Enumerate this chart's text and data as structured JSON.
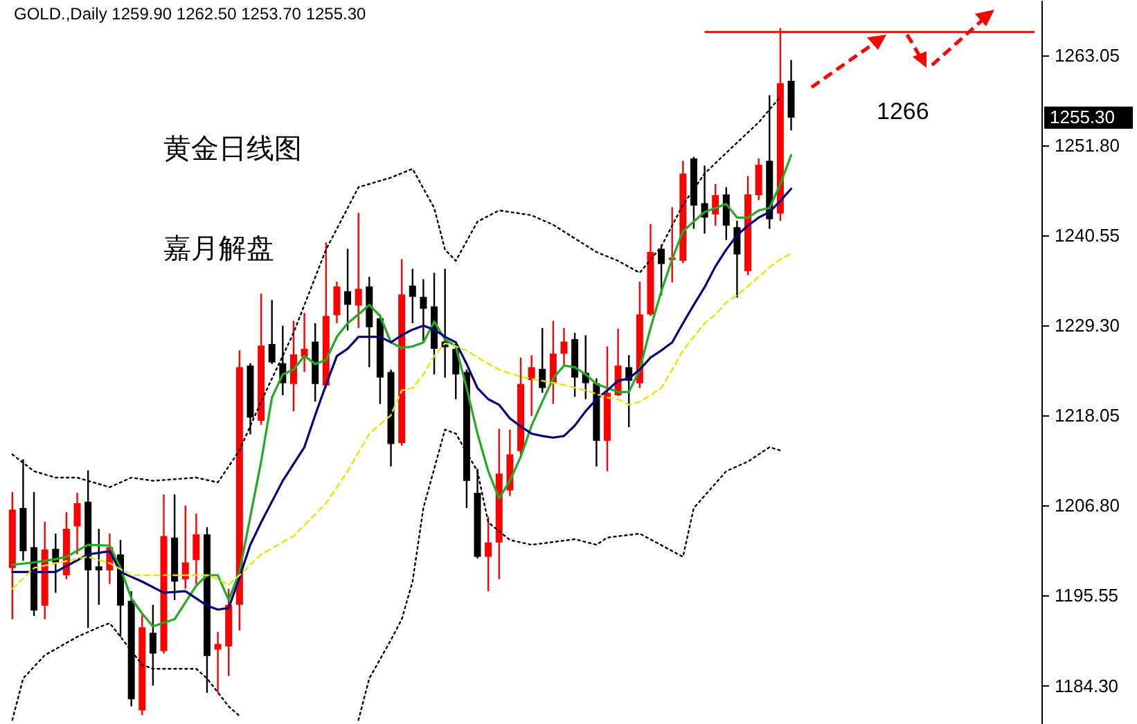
{
  "chart_data": {
    "type": "candlestick",
    "title": "GOLD.,Daily  1259.90 1262.50 1253.70 1255.30",
    "categories": [
      null,
      null,
      null,
      null,
      null,
      null,
      null,
      null,
      null,
      null,
      null,
      null,
      null,
      null,
      null,
      null,
      null,
      null,
      null,
      null,
      null,
      null,
      null,
      null,
      null,
      null,
      null,
      null,
      null,
      null,
      null,
      null,
      null,
      null,
      null,
      null,
      null,
      null,
      null,
      null,
      null,
      null,
      null,
      null,
      null,
      null,
      null,
      null,
      null,
      null,
      null,
      null,
      null,
      null,
      null,
      null,
      null,
      null,
      null,
      null,
      null,
      null,
      null,
      null,
      null,
      null,
      null,
      null,
      null,
      null,
      null,
      null,
      null,
      null,
      null,
      null,
      null,
      null,
      null,
      null,
      null,
      null,
      null,
      null,
      null,
      null,
      null,
      null,
      null,
      null,
      null,
      null,
      null,
      null,
      null
    ],
    "ohlc": [
      [
        1199.0,
        1208.5,
        1192.6,
        1206.3
      ],
      [
        1206.5,
        1212.6,
        1199.9,
        1201.1
      ],
      [
        1201.6,
        1208.5,
        1193.0,
        1193.7
      ],
      [
        1194.3,
        1204.8,
        1192.6,
        1201.3
      ],
      [
        1201.4,
        1203.3,
        1195.9,
        1199.7
      ],
      [
        1198.1,
        1206.0,
        1197.6,
        1203.9
      ],
      [
        1204.2,
        1208.4,
        1200.7,
        1207.1
      ],
      [
        1207.3,
        1211.2,
        1191.5,
        1198.7
      ],
      [
        1199.2,
        1203.9,
        1194.4,
        1198.7
      ],
      [
        1198.7,
        1203.3,
        1197.0,
        1201.6
      ],
      [
        1200.7,
        1202.5,
        1190.4,
        1194.3
      ],
      [
        1194.9,
        1196.1,
        1181.7,
        1182.6
      ],
      [
        1181.2,
        1193.1,
        1180.6,
        1191.6
      ],
      [
        1190.9,
        1194.4,
        1184.3,
        1188.3
      ],
      [
        1188.6,
        1208.2,
        1188.3,
        1203.0
      ],
      [
        1202.8,
        1208.2,
        1195.0,
        1197.3
      ],
      [
        1197.6,
        1206.8,
        1196.4,
        1199.7
      ],
      [
        1200.0,
        1205.8,
        1197.0,
        1203.2
      ],
      [
        1203.2,
        1204.1,
        1183.4,
        1188.0
      ],
      [
        1188.8,
        1191.0,
        1183.4,
        1189.5
      ],
      [
        1189.2,
        1196.4,
        1185.5,
        1194.4
      ],
      [
        1194.4,
        1226.2,
        1191.2,
        1224.1
      ],
      [
        1224.3,
        1224.6,
        1215.7,
        1217.8
      ],
      [
        1217.4,
        1233.3,
        1216.9,
        1226.8
      ],
      [
        1227.0,
        1232.5,
        1224.5,
        1224.7
      ],
      [
        1224.6,
        1229.3,
        1220.6,
        1222.1
      ],
      [
        1222.0,
        1229.9,
        1218.6,
        1225.7
      ],
      [
        1225.4,
        1230.9,
        1223.5,
        1226.4
      ],
      [
        1227.3,
        1229.6,
        1219.8,
        1222.0
      ],
      [
        1221.8,
        1239.7,
        1221.5,
        1230.5
      ],
      [
        1230.6,
        1234.8,
        1229.6,
        1234.2
      ],
      [
        1233.6,
        1238.9,
        1228.7,
        1231.9
      ],
      [
        1231.8,
        1243.4,
        1229.0,
        1233.9
      ],
      [
        1234.2,
        1235.4,
        1224.1,
        1229.1
      ],
      [
        1230.2,
        1230.7,
        1219.5,
        1222.8
      ],
      [
        1223.5,
        1223.8,
        1211.7,
        1214.5
      ],
      [
        1214.6,
        1237.6,
        1214.3,
        1233.2
      ],
      [
        1234.3,
        1236.4,
        1229.6,
        1232.9
      ],
      [
        1232.9,
        1235.1,
        1227.3,
        1231.4
      ],
      [
        1231.7,
        1235.9,
        1223.2,
        1226.4
      ],
      [
        1227.3,
        1236.4,
        1222.8,
        1226.6
      ],
      [
        1226.4,
        1227.0,
        1220.1,
        1223.2
      ],
      [
        1223.5,
        1223.8,
        1206.5,
        1209.9
      ],
      [
        1208.4,
        1211.4,
        1200.2,
        1200.4
      ],
      [
        1200.4,
        1205.4,
        1196.1,
        1202.2
      ],
      [
        1202.2,
        1216.4,
        1197.6,
        1210.8
      ],
      [
        1208.7,
        1216.3,
        1208.0,
        1213.2
      ],
      [
        1213.6,
        1225.3,
        1212.9,
        1222.0
      ],
      [
        1222.5,
        1225.6,
        1218.0,
        1224.1
      ],
      [
        1223.9,
        1229.0,
        1220.9,
        1221.5
      ],
      [
        1222.1,
        1229.9,
        1219.5,
        1225.8
      ],
      [
        1225.8,
        1229.0,
        1224.4,
        1227.3
      ],
      [
        1227.6,
        1228.4,
        1220.4,
        1222.8
      ],
      [
        1223.4,
        1228.1,
        1220.1,
        1222.1
      ],
      [
        1222.1,
        1222.7,
        1211.7,
        1214.9
      ],
      [
        1214.9,
        1226.7,
        1211.1,
        1220.9
      ],
      [
        1220.6,
        1228.9,
        1220.5,
        1224.3
      ],
      [
        1224.1,
        1225.6,
        1216.6,
        1222.4
      ],
      [
        1222.1,
        1234.8,
        1221.5,
        1230.7
      ],
      [
        1230.7,
        1242.0,
        1230.5,
        1238.5
      ],
      [
        1238.9,
        1239.4,
        1233.1,
        1237.0
      ],
      [
        1237.5,
        1244.1,
        1234.7,
        1237.8
      ],
      [
        1237.4,
        1249.9,
        1237.1,
        1248.3
      ],
      [
        1250.2,
        1250.4,
        1241.4,
        1244.3
      ],
      [
        1244.6,
        1249.3,
        1240.8,
        1242.8
      ],
      [
        1243.2,
        1247.0,
        1241.8,
        1245.6
      ],
      [
        1245.7,
        1246.6,
        1240.0,
        1241.8
      ],
      [
        1241.6,
        1242.4,
        1232.8,
        1238.2
      ],
      [
        1236.1,
        1248.0,
        1235.6,
        1245.7
      ],
      [
        1245.6,
        1250.2,
        1245.0,
        1249.4
      ],
      [
        1249.9,
        1258.1,
        1241.4,
        1242.6
      ],
      [
        1243.3,
        1266.5,
        1242.4,
        1259.6
      ],
      [
        1259.9,
        1262.5,
        1253.7,
        1255.3
      ],
      null,
      null,
      null,
      null,
      null,
      null,
      null,
      null,
      null,
      null,
      null,
      null,
      null,
      null,
      null,
      null,
      null,
      null,
      null,
      null,
      null,
      null
    ],
    "colors": [
      "#ff0000",
      "#000000",
      "#000000",
      "#ff0000",
      "#000000",
      "#ff0000",
      "#ff0000",
      "#000000",
      "#000000",
      "#ff0000",
      "#000000",
      "#000000",
      "#ff0000",
      "#000000",
      "#ff0000",
      "#000000",
      "#ff0000",
      "#ff0000",
      "#000000",
      "#ff0000",
      "#ff0000",
      "#ff0000",
      "#000000",
      "#ff0000",
      "#000000",
      "#000000",
      "#ff0000",
      "#ff0000",
      "#000000",
      "#ff0000",
      "#ff0000",
      "#000000",
      "#ff0000",
      "#000000",
      "#000000",
      "#000000",
      "#ff0000",
      "#000000",
      "#000000",
      "#000000",
      "#000000",
      "#000000",
      "#000000",
      "#000000",
      "#ff0000",
      "#ff0000",
      "#ff0000",
      "#ff0000",
      "#ff0000",
      "#000000",
      "#ff0000",
      "#ff0000",
      "#000000",
      "#000000",
      "#000000",
      "#ff0000",
      "#ff0000",
      "#000000",
      "#ff0000",
      "#ff0000",
      "#000000",
      "#ff0000",
      "#ff0000",
      "#000000",
      "#000000",
      "#ff0000",
      "#000000",
      "#000000",
      "#ff0000",
      "#ff0000",
      "#000000",
      "#ff0000",
      "#000000",
      null,
      null,
      null,
      null,
      null,
      null,
      null,
      null,
      null,
      null,
      null,
      null,
      null,
      null,
      null,
      null,
      null,
      null,
      null,
      null,
      null,
      null
    ],
    "series": [
      {
        "type": "line",
        "color": "#22aa22",
        "line_style": "solid",
        "values": [
          1199.4,
          null,
          1199.7,
          null,
          1200.1,
          1200.4,
          null,
          1201.9,
          null,
          1201.8,
          1199.0,
          1195.2,
          1193.3,
          1191.7,
          null,
          1192.6,
          null,
          1196.8,
          1198.1,
          1198.1,
          1195.0,
          1198.5,
          1205.4,
          1212.3,
          1220.3,
          1223.2,
          1223.8,
          1225.5,
          1224.5,
          1225.0,
          1227.9,
          1229.6,
          1230.7,
          1231.9,
          1230.5,
          1227.2,
          1226.5,
          1226.7,
          1227.2,
          1229.8,
          1227.6,
          1226.7,
          1221.5,
          1215.8,
          1211.1,
          1207.7,
          1209.9,
          1212.9,
          1216.8,
          1219.8,
          1222.7,
          1224.3,
          1224.1,
          1223.2,
          1222.0,
          1221.5,
          1221.0,
          1221.0,
          1223.8,
          1229.0,
          1233.6,
          1237.6,
          1241.1,
          1242.3,
          1243.5,
          1244.0,
          1244.5,
          1242.8,
          1242.8,
          1243.7,
          1244.0,
          1247.0,
          1250.6,
          null,
          null,
          null,
          null,
          null,
          null,
          null,
          null,
          null,
          null,
          null,
          null,
          null,
          null,
          null,
          null,
          null,
          null,
          null,
          null,
          null,
          null
        ]
      },
      {
        "type": "line",
        "color": "#000080",
        "line_style": "solid",
        "values": [
          1198.5,
          null,
          null,
          null,
          1198.5,
          null,
          null,
          1200.7,
          null,
          1201.1,
          1198.5,
          null,
          1197.3,
          null,
          1195.9,
          null,
          1196.1,
          null,
          1194.3,
          1193.8,
          1194.0,
          1197.8,
          1201.9,
          1204.7,
          null,
          1209.9,
          null,
          1214.1,
          1218.1,
          1221.9,
          1225.5,
          1226.4,
          1227.9,
          null,
          1227.9,
          1227.2,
          1228.1,
          1228.8,
          1229.3,
          1228.8,
          1227.9,
          1227.2,
          1224.5,
          1221.5,
          1220.1,
          1219.4,
          1217.7,
          1216.7,
          1215.8,
          1215.5,
          1215.3,
          1215.5,
          1216.8,
          1218.6,
          1220.1,
          1221.2,
          1222.4,
          1222.7,
          1223.8,
          1225.3,
          1226.2,
          1227.2,
          1229.6,
          1231.9,
          1234.1,
          1236.7,
          1238.8,
          1240.6,
          1241.8,
          1242.8,
          1243.5,
          1244.9,
          1246.4,
          null,
          null,
          null,
          null,
          null,
          null,
          null,
          null,
          null,
          null,
          null,
          null,
          null,
          null,
          null,
          null,
          null,
          null,
          null,
          null,
          null,
          null
        ]
      },
      {
        "type": "line",
        "color": "#e6e600",
        "line_style": "dashed",
        "values": [
          1196.4,
          null,
          1199.0,
          null,
          1199.6,
          null,
          null,
          1200.4,
          null,
          1199.6,
          null,
          1198.1,
          null,
          null,
          1198.1,
          null,
          null,
          null,
          1198.1,
          1197.6,
          1196.9,
          1198.1,
          null,
          1200.7,
          null,
          null,
          1203.0,
          null,
          null,
          1207.1,
          null,
          1211.1,
          null,
          1215.8,
          null,
          1218.1,
          1221.2,
          1221.5,
          1223.2,
          1225.5,
          1227.1,
          1226.7,
          1226.2,
          1225.3,
          null,
          1223.8,
          null,
          1222.9,
          null,
          1222.4,
          null,
          1221.9,
          null,
          1221.2,
          null,
          1220.3,
          1220.1,
          1219.4,
          1219.8,
          1220.6,
          1221.5,
          1223.8,
          1226.2,
          1227.9,
          1229.6,
          1230.7,
          1232.2,
          1233.1,
          1234.2,
          1235.4,
          1236.6,
          1237.6,
          1238.3,
          null,
          null,
          null,
          null,
          null,
          null,
          null,
          null,
          null,
          null,
          null,
          null,
          null,
          null,
          null,
          null,
          null,
          null,
          null,
          null,
          null,
          null
        ]
      },
      {
        "type": "line",
        "color": "#000000",
        "line_style": "dotted",
        "values": [
          1213.2,
          null,
          1211.1,
          null,
          1210.3,
          null,
          1210.3,
          null,
          null,
          1209.1,
          null,
          1210.3,
          null,
          1209.9,
          null,
          null,
          null,
          1210.3,
          null,
          1209.7,
          null,
          1213.7,
          null,
          1219.8,
          null,
          null,
          1228.4,
          null,
          null,
          1238.8,
          null,
          null,
          1246.6,
          null,
          null,
          1247.8,
          null,
          1248.9,
          null,
          1244.0,
          1238.8,
          1237.4,
          null,
          1242.3,
          null,
          1243.7,
          null,
          null,
          1243.1,
          null,
          1241.9,
          null,
          1240.2,
          null,
          1238.5,
          null,
          1237.4,
          null,
          1235.9,
          null,
          1239.2,
          null,
          1244.4,
          null,
          1248.3,
          null,
          1250.9,
          null,
          null,
          1254.7,
          null,
          1257.9,
          null,
          null,
          null,
          null,
          null,
          null,
          null,
          null,
          null,
          null,
          null,
          null,
          null,
          null,
          null,
          null,
          null,
          null,
          null,
          null,
          null,
          null,
          null
        ]
      },
      {
        "type": "line",
        "color": "#000000",
        "line_style": "dotted",
        "values": [
          1180.0,
          1185.2,
          null,
          1188.1,
          null,
          null,
          1190.4,
          null,
          1191.6,
          1192.1,
          1190.4,
          null,
          1186.9,
          1186.4,
          null,
          null,
          null,
          1186.4,
          1185.2,
          null,
          1181.7,
          1180.5,
          null,
          null,
          null,
          null,
          null,
          null,
          null,
          null,
          null,
          null,
          null,
          null,
          null,
          null,
          null,
          null,
          null,
          null,
          null,
          null,
          null,
          null,
          null,
          null,
          null,
          null,
          null,
          null,
          null,
          null,
          null,
          null,
          null,
          null,
          null,
          null,
          null,
          null,
          null,
          null,
          null,
          null,
          null,
          null,
          null,
          null,
          null,
          null,
          null,
          null,
          null,
          null,
          null,
          null,
          null,
          null,
          null,
          null,
          null,
          null,
          null,
          null,
          null,
          null,
          null,
          null,
          null,
          null,
          null,
          null,
          null,
          null,
          null
        ]
      },
      {
        "type": "line",
        "color": "#000000",
        "line_style": "dotted",
        "values": [
          null,
          null,
          null,
          null,
          null,
          null,
          null,
          null,
          null,
          null,
          null,
          null,
          null,
          null,
          null,
          null,
          null,
          null,
          null,
          null,
          null,
          null,
          null,
          null,
          null,
          null,
          null,
          null,
          null,
          null,
          null,
          null,
          1180.0,
          1185.2,
          null,
          1190.0,
          1192.6,
          1197.3,
          1206.5,
          null,
          1216.3,
          1215.8,
          null,
          1211.1,
          1204.7,
          null,
          1202.5,
          null,
          1201.9,
          null,
          null,
          null,
          1202.6,
          null,
          1201.9,
          1202.8,
          null,
          null,
          1203.3,
          null,
          null,
          null,
          1200.4,
          1206.5,
          null,
          null,
          1211.1,
          null,
          1212.3,
          null,
          1214.1,
          1213.7,
          null,
          null,
          null,
          null,
          null,
          null,
          null,
          null,
          null,
          null,
          null,
          null,
          null,
          null,
          null,
          null,
          null,
          null,
          null,
          null,
          null,
          null,
          null
        ]
      }
    ],
    "ylim": [
      1179.5,
      1270
    ],
    "yticks": [
      {
        "value": 1184.3,
        "label": "1184.30"
      },
      1195.55,
      {
        "value": 1206.8,
        "label": "1206.80"
      },
      1218.05,
      {
        "value": 1229.3,
        "label": "1229.30"
      },
      1240.55,
      {
        "value": 1251.8,
        "label": "1251.80"
      },
      1263.05
    ],
    "tick_labels": "y",
    "ref_lines": [
      {
        "axis": "y",
        "value": 1266,
        "label": "1266",
        "color": "#ff0000"
      }
    ],
    "annotations": [
      "黄金日线图",
      "嘉月解盘",
      "1255.30"
    ]
  }
}
